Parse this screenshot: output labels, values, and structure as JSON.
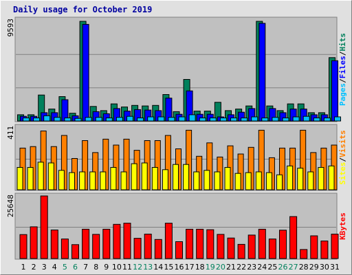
{
  "chart_data": {
    "type": "bar",
    "title": "Daily usage for October 2019",
    "categories": [
      "1",
      "2",
      "3",
      "4",
      "5",
      "6",
      "7",
      "8",
      "9",
      "10",
      "11",
      "12",
      "13",
      "14",
      "15",
      "16",
      "17",
      "18",
      "19",
      "20",
      "21",
      "22",
      "23",
      "24",
      "25",
      "26",
      "27",
      "28",
      "29",
      "30",
      "31"
    ],
    "weekend_days": [
      "5",
      "6",
      "12",
      "13",
      "19",
      "20",
      "26",
      "27"
    ],
    "colors": {
      "background": "#e0e0e0",
      "plot_background": "#c0c0c0",
      "title": "#0000a0",
      "weekday_label": "#000000",
      "weekend_label": "#00805c",
      "hits": "#00805c",
      "files": "#0000ff",
      "pages": "#00c0ff",
      "visits": "#ff8000",
      "sites": "#ffff00",
      "kbytes": "#ff0000"
    },
    "panels": [
      {
        "id": "usage",
        "ymax_label": "9593",
        "ylim": [
          0,
          9593
        ],
        "legend": [
          {
            "text": "Hits",
            "color_key": "hits"
          },
          {
            "text": "Files",
            "color_key": "files"
          },
          {
            "text": "Pages",
            "color_key": "pages"
          }
        ],
        "series": [
          {
            "name": "Hits",
            "color_key": "hits",
            "values": [
              600,
              600,
              2500,
              1150,
              2350,
              750,
              9593,
              1400,
              1000,
              1650,
              1350,
              1500,
              1450,
              1500,
              2550,
              900,
              4000,
              950,
              950,
              1800,
              1000,
              1150,
              1450,
              9593,
              1450,
              1000,
              1650,
              1650,
              800,
              800,
              6100
            ]
          },
          {
            "name": "Files",
            "color_key": "files",
            "values": [
              450,
              450,
              800,
              800,
              2050,
              500,
              9300,
              900,
              700,
              1200,
              950,
              1100,
              1050,
              1000,
              2200,
              650,
              2900,
              650,
              650,
              400,
              600,
              850,
              1200,
              9400,
              1200,
              800,
              1150,
              1150,
              600,
              600,
              5800
            ]
          },
          {
            "name": "Pages",
            "color_key": "pages",
            "values": [
              300,
              300,
              500,
              350,
              300,
              250,
              350,
              350,
              300,
              350,
              450,
              300,
              400,
              400,
              350,
              400,
              600,
              300,
              300,
              300,
              300,
              300,
              400,
              300,
              350,
              300,
              400,
              450,
              300,
              300,
              400
            ]
          }
        ]
      },
      {
        "id": "visits",
        "ymax_label": "411",
        "ylim": [
          0,
          411
        ],
        "legend": [
          {
            "text": "Visits",
            "color_key": "visits"
          },
          {
            "text": "Sites",
            "color_key": "sites"
          }
        ],
        "series": [
          {
            "name": "Visits",
            "color_key": "visits",
            "values": [
              280,
              290,
              395,
              290,
              365,
              210,
              330,
              250,
              340,
              300,
              340,
              265,
              330,
              330,
              365,
              275,
              400,
              225,
              315,
              220,
              295,
              240,
              285,
              400,
              215,
              280,
              280,
              400,
              250,
              280,
              300
            ]
          },
          {
            "name": "Sites",
            "color_key": "sites",
            "values": [
              150,
              150,
              185,
              180,
              130,
              115,
              120,
              120,
              120,
              150,
              120,
              175,
              180,
              150,
              135,
              170,
              170,
              120,
              130,
              120,
              150,
              110,
              115,
              120,
              115,
              100,
              160,
              145,
              120,
              150,
              160
            ]
          }
        ]
      },
      {
        "id": "kbytes",
        "ymax_label": "25648",
        "ylim": [
          0,
          25648
        ],
        "legend": [
          {
            "text": "KBytes",
            "color_key": "kbytes"
          }
        ],
        "series": [
          {
            "name": "KBytes",
            "color_key": "kbytes",
            "values": [
              9800,
              13000,
              25648,
              11700,
              8000,
              5700,
              12000,
              9900,
              12000,
              14000,
              14500,
              8300,
              10000,
              7800,
              14500,
              6900,
              12000,
              12000,
              11800,
              9900,
              8400,
              5800,
              9600,
              12000,
              8000,
              11600,
              17200,
              3700,
              9300,
              7200,
              10000
            ]
          }
        ]
      }
    ]
  }
}
